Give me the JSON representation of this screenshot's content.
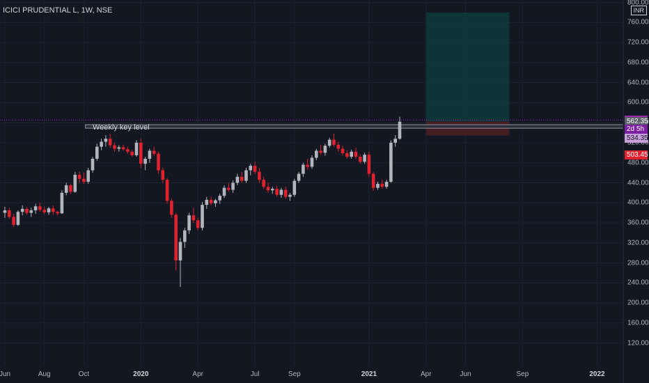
{
  "header": {
    "symbol_label": "ICICI PRUDENTIAL L, 1W, NSE",
    "currency": "INR"
  },
  "colors": {
    "background": "#131722",
    "up": "#b2b5be",
    "down": "#e0222f",
    "grid": "#1e2230",
    "profit_zone": "#0d3a3a",
    "loss_zone": "#4a1e24",
    "last_price_tag": "#9c27b0",
    "stop_tag": "#e0222f"
  },
  "chart_data": {
    "type": "candlestick",
    "title": "ICICI PRUDENTIAL L, 1W, NSE",
    "xlabel": "",
    "ylabel": "",
    "ylim": [
      75,
      805
    ],
    "y_ticks": [
      800,
      760,
      720,
      680,
      640,
      600,
      560,
      520,
      480,
      440,
      400,
      360,
      320,
      280,
      240,
      200,
      160,
      120
    ],
    "x_ticks": [
      {
        "label": "Jun",
        "index": 0
      },
      {
        "label": "Aug",
        "index": 9
      },
      {
        "label": "Oct",
        "index": 18
      },
      {
        "label": "2020",
        "index": 31,
        "bold": true
      },
      {
        "label": "Apr",
        "index": 44
      },
      {
        "label": "Jul",
        "index": 57
      },
      {
        "label": "Sep",
        "index": 66
      },
      {
        "label": "2021",
        "index": 83,
        "bold": true
      },
      {
        "label": "Apr",
        "index": 96
      },
      {
        "label": "Jun",
        "index": 105
      },
      {
        "label": "Sep",
        "index": 118
      },
      {
        "label": "2022",
        "index": 135,
        "bold": true
      }
    ],
    "candles": [
      [
        380,
        392,
        370,
        385
      ],
      [
        385,
        390,
        368,
        372
      ],
      [
        372,
        378,
        352,
        356
      ],
      [
        356,
        385,
        354,
        382
      ],
      [
        382,
        395,
        375,
        388
      ],
      [
        388,
        392,
        376,
        380
      ],
      [
        380,
        390,
        372,
        385
      ],
      [
        385,
        398,
        378,
        393
      ],
      [
        393,
        400,
        382,
        386
      ],
      [
        386,
        392,
        378,
        381
      ],
      [
        381,
        392,
        376,
        389
      ],
      [
        389,
        395,
        376,
        382
      ],
      [
        382,
        384,
        375,
        379
      ],
      [
        379,
        425,
        378,
        420
      ],
      [
        420,
        440,
        415,
        435
      ],
      [
        435,
        438,
        418,
        422
      ],
      [
        422,
        462,
        420,
        456
      ],
      [
        456,
        462,
        440,
        448
      ],
      [
        448,
        460,
        438,
        442
      ],
      [
        442,
        470,
        438,
        465
      ],
      [
        465,
        492,
        460,
        488
      ],
      [
        488,
        518,
        484,
        512
      ],
      [
        512,
        528,
        505,
        522
      ],
      [
        522,
        535,
        512,
        528
      ],
      [
        528,
        538,
        510,
        515
      ],
      [
        515,
        520,
        502,
        508
      ],
      [
        508,
        515,
        502,
        511
      ],
      [
        511,
        516,
        504,
        507
      ],
      [
        507,
        512,
        498,
        502
      ],
      [
        502,
        506,
        492,
        495
      ],
      [
        495,
        525,
        492,
        520
      ],
      [
        520,
        528,
        470,
        478
      ],
      [
        478,
        492,
        465,
        488
      ],
      [
        488,
        508,
        480,
        504
      ],
      [
        504,
        512,
        494,
        498
      ],
      [
        498,
        502,
        458,
        465
      ],
      [
        465,
        470,
        440,
        446
      ],
      [
        446,
        450,
        398,
        404
      ],
      [
        404,
        408,
        370,
        376
      ],
      [
        376,
        380,
        265,
        285
      ],
      [
        285,
        330,
        232,
        322
      ],
      [
        322,
        350,
        310,
        345
      ],
      [
        345,
        380,
        338,
        375
      ],
      [
        375,
        390,
        360,
        365
      ],
      [
        365,
        370,
        345,
        350
      ],
      [
        350,
        402,
        345,
        396
      ],
      [
        396,
        412,
        388,
        406
      ],
      [
        406,
        412,
        395,
        399
      ],
      [
        399,
        408,
        392,
        405
      ],
      [
        405,
        418,
        398,
        414
      ],
      [
        414,
        435,
        410,
        430
      ],
      [
        430,
        440,
        422,
        426
      ],
      [
        426,
        445,
        420,
        440
      ],
      [
        440,
        458,
        435,
        452
      ],
      [
        452,
        462,
        440,
        444
      ],
      [
        444,
        470,
        440,
        465
      ],
      [
        465,
        478,
        455,
        474
      ],
      [
        474,
        482,
        458,
        462
      ],
      [
        462,
        470,
        440,
        446
      ],
      [
        446,
        452,
        428,
        432
      ],
      [
        432,
        440,
        420,
        425
      ],
      [
        425,
        432,
        418,
        428
      ],
      [
        428,
        434,
        412,
        416
      ],
      [
        416,
        430,
        410,
        426
      ],
      [
        426,
        432,
        408,
        412
      ],
      [
        412,
        420,
        404,
        416
      ],
      [
        416,
        448,
        412,
        444
      ],
      [
        444,
        462,
        440,
        458
      ],
      [
        458,
        480,
        452,
        476
      ],
      [
        476,
        488,
        466,
        472
      ],
      [
        472,
        495,
        468,
        490
      ],
      [
        490,
        508,
        485,
        504
      ],
      [
        504,
        516,
        496,
        500
      ],
      [
        500,
        518,
        494,
        514
      ],
      [
        514,
        530,
        510,
        526
      ],
      [
        526,
        538,
        512,
        516
      ],
      [
        516,
        522,
        502,
        508
      ],
      [
        508,
        514,
        495,
        499
      ],
      [
        499,
        505,
        488,
        492
      ],
      [
        492,
        506,
        488,
        502
      ],
      [
        502,
        510,
        488,
        492
      ],
      [
        492,
        497,
        478,
        482
      ],
      [
        482,
        500,
        478,
        496
      ],
      [
        496,
        502,
        452,
        458
      ],
      [
        458,
        462,
        424,
        430
      ],
      [
        430,
        442,
        426,
        438
      ],
      [
        438,
        446,
        428,
        432
      ],
      [
        432,
        446,
        428,
        442
      ],
      [
        442,
        525,
        440,
        520
      ],
      [
        520,
        535,
        512,
        528
      ],
      [
        528,
        572,
        526,
        562
      ]
    ],
    "last_price": 565.3,
    "countdown": "2d 5h",
    "levels": [
      {
        "label": "565.30",
        "value": 565.3
      },
      {
        "label": "562.35",
        "value": 562.35
      },
      {
        "label": "534.35",
        "value": 534.35
      },
      {
        "label": "503.45",
        "value": 503.45
      }
    ],
    "annotation": "Weekly key level",
    "key_level": {
      "from_index": 19,
      "low": 549,
      "high": 556
    },
    "position": {
      "from_index": 96,
      "to_index": 115,
      "entry": 562.35,
      "target": 780,
      "stop": 534.35
    }
  }
}
